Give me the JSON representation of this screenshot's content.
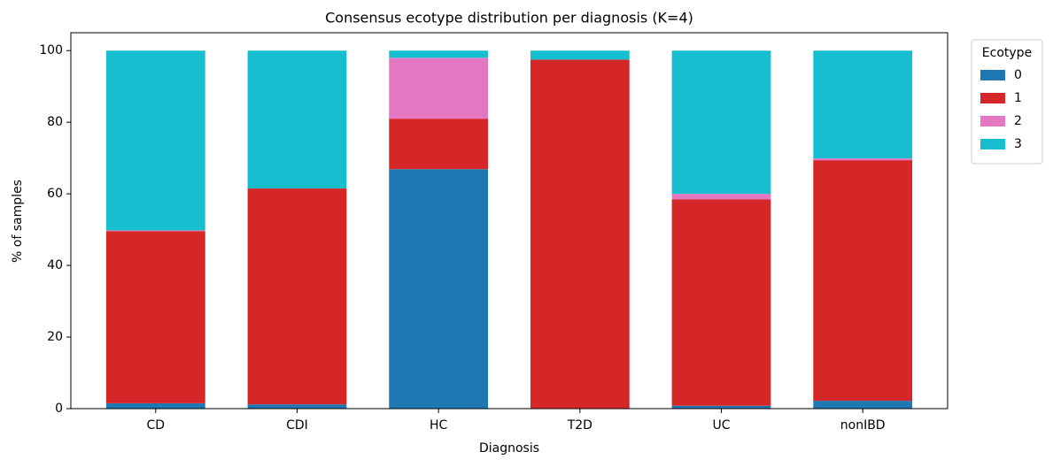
{
  "chart_data": {
    "type": "bar",
    "stacked": true,
    "title": "Consensus ecotype distribution per diagnosis (K=4)",
    "xlabel": "Diagnosis",
    "ylabel": "% of samples",
    "categories": [
      "CD",
      "CDI",
      "HC",
      "T2D",
      "UC",
      "nonIBD"
    ],
    "series": [
      {
        "name": "0",
        "color": "#1f77b4",
        "values": [
          1.5,
          1.2,
          66.9,
          0,
          0.8,
          2.2
        ]
      },
      {
        "name": "1",
        "color": "#d62728",
        "values": [
          48.1,
          60.3,
          14.1,
          97.5,
          57.7,
          67.2
        ]
      },
      {
        "name": "2",
        "color": "#e377c2",
        "values": [
          0.2,
          0,
          17.0,
          0,
          1.5,
          0.5
        ]
      },
      {
        "name": "3",
        "color": "#17becf",
        "values": [
          50.2,
          38.5,
          2.0,
          2.5,
          40.0,
          30.1
        ]
      }
    ],
    "legend_title": "Ecotype",
    "legend": "upper right outside",
    "ylim": [
      0,
      105
    ],
    "yticks": [
      0,
      20,
      40,
      60,
      80,
      100
    ],
    "grid": false
  }
}
